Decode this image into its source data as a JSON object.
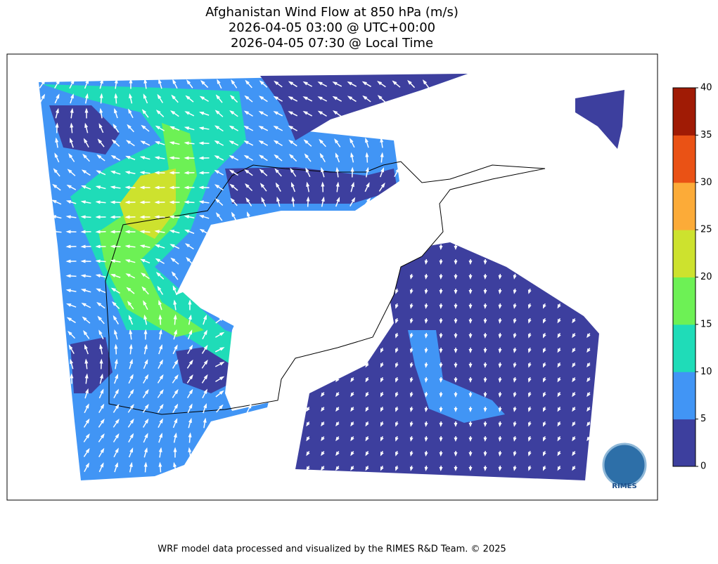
{
  "title": [
    "Afghanistan Wind Flow at 850 hPa (m/s)",
    "2026-04-05 03:00 @ UTC+00:00",
    "2026-04-05 07:30 @ Local Time"
  ],
  "colorbar": {
    "levels": [
      0,
      5,
      10,
      15,
      20,
      25,
      30,
      35,
      40
    ],
    "colors": [
      "#3d3f9e",
      "#4195f5",
      "#1fdcb8",
      "#6df155",
      "#cde22e",
      "#fcab38",
      "#ea5215",
      "#a01b05"
    ]
  },
  "logo": "RIMES",
  "footer": "WRF model data processed and visualized by the RIMES R&D Team. © 2025"
}
